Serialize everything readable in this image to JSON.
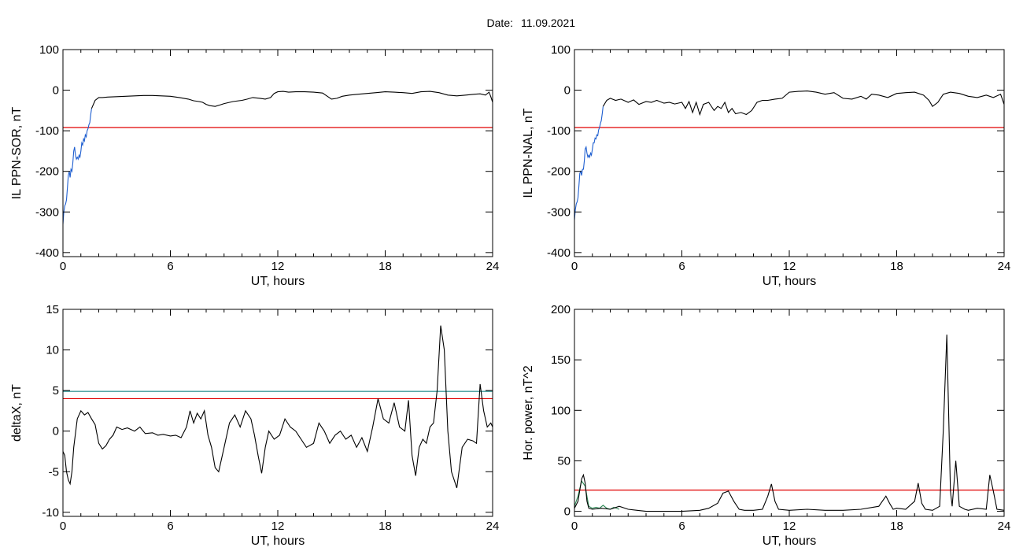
{
  "header": {
    "date_label": "Date:",
    "date_value": "11.09.2021"
  },
  "colors": {
    "line": "#000000",
    "threshold_red": "#e00000",
    "threshold_teal": "#1f8a8a",
    "highlight_blue": "#1f5fd0",
    "highlight_green": "#2e8b57"
  },
  "chart_data": [
    {
      "id": "il-sor",
      "type": "line",
      "title": "",
      "xlabel": "UT, hours",
      "ylabel": "IL PPN-SOR, nT",
      "xlim": [
        0,
        24
      ],
      "ylim": [
        -410,
        100
      ],
      "xticks": [
        0,
        6,
        12,
        18,
        24
      ],
      "xtick_labels": [
        "0",
        "6",
        "12",
        "18",
        "24"
      ],
      "yticks": [
        -400,
        -300,
        -200,
        -100,
        0,
        100
      ],
      "ytick_labels": [
        "-400",
        "-300",
        "-200",
        "-100",
        "0",
        "100"
      ],
      "grid": false,
      "thresholds": [
        {
          "value": -92,
          "color": "#e00000"
        }
      ],
      "series": [
        {
          "color": "#1f5fd0",
          "x": [
            0,
            0.05,
            0.1,
            0.15,
            0.2,
            0.25,
            0.3,
            0.35,
            0.4,
            0.45,
            0.5,
            0.55,
            0.6,
            0.65,
            0.7,
            0.75,
            0.8,
            0.85,
            0.9,
            0.95,
            1.0,
            1.05,
            1.1,
            1.15,
            1.2,
            1.25,
            1.3,
            1.35,
            1.4,
            1.45,
            1.5,
            1.55,
            1.6
          ],
          "y": [
            -330,
            -300,
            -285,
            -280,
            -270,
            -240,
            -210,
            -200,
            -215,
            -195,
            -200,
            -180,
            -150,
            -140,
            -160,
            -170,
            -165,
            -170,
            -160,
            -165,
            -150,
            -130,
            -135,
            -120,
            -125,
            -110,
            -115,
            -100,
            -95,
            -85,
            -80,
            -60,
            -45
          ]
        },
        {
          "color": "#000000",
          "x": [
            1.6,
            1.8,
            2.0,
            2.2,
            2.5,
            3.0,
            3.5,
            4.0,
            4.5,
            5.0,
            5.5,
            6.0,
            6.5,
            7.0,
            7.3,
            7.6,
            7.8,
            8.0,
            8.2,
            8.5,
            8.8,
            9.0,
            9.5,
            10.0,
            10.3,
            10.6,
            11.0,
            11.3,
            11.6,
            11.8,
            12.0,
            12.3,
            12.6,
            13.0,
            13.5,
            14.0,
            14.5,
            14.8,
            15.0,
            15.3,
            15.6,
            16.0,
            16.5,
            17.0,
            17.5,
            18.0,
            18.5,
            19.0,
            19.5,
            20.0,
            20.5,
            21.0,
            21.5,
            22.0,
            22.5,
            23.0,
            23.3,
            23.6,
            23.8,
            23.9,
            24.0
          ],
          "y": [
            -45,
            -25,
            -18,
            -18,
            -17,
            -16,
            -15,
            -14,
            -13,
            -13,
            -14,
            -15,
            -18,
            -22,
            -26,
            -28,
            -30,
            -35,
            -38,
            -40,
            -36,
            -33,
            -28,
            -25,
            -22,
            -18,
            -20,
            -22,
            -18,
            -8,
            -4,
            -3,
            -5,
            -4,
            -4,
            -5,
            -7,
            -16,
            -22,
            -20,
            -15,
            -12,
            -10,
            -8,
            -6,
            -4,
            -5,
            -6,
            -8,
            -4,
            -3,
            -6,
            -12,
            -14,
            -12,
            -10,
            -9,
            -12,
            -5,
            -16,
            -30
          ]
        }
      ]
    },
    {
      "id": "il-nal",
      "type": "line",
      "title": "",
      "xlabel": "UT, hours",
      "ylabel": "IL PPN-NAL, nT",
      "xlim": [
        0,
        24
      ],
      "ylim": [
        -410,
        100
      ],
      "xticks": [
        0,
        6,
        12,
        18,
        24
      ],
      "xtick_labels": [
        "0",
        "6",
        "12",
        "18",
        "24"
      ],
      "yticks": [
        -400,
        -300,
        -200,
        -100,
        0,
        100
      ],
      "ytick_labels": [
        "-400",
        "-300",
        "-200",
        "-100",
        "0",
        "100"
      ],
      "grid": false,
      "thresholds": [
        {
          "value": -92,
          "color": "#e00000"
        }
      ],
      "series": [
        {
          "color": "#1f5fd0",
          "x": [
            0,
            0.05,
            0.1,
            0.15,
            0.2,
            0.25,
            0.3,
            0.35,
            0.4,
            0.45,
            0.5,
            0.55,
            0.6,
            0.65,
            0.7,
            0.75,
            0.8,
            0.85,
            0.9,
            0.95,
            1.0,
            1.05,
            1.1,
            1.15,
            1.2,
            1.25,
            1.3,
            1.35,
            1.4,
            1.45,
            1.5,
            1.55,
            1.6
          ],
          "y": [
            -320,
            -295,
            -280,
            -275,
            -265,
            -235,
            -205,
            -200,
            -210,
            -195,
            -195,
            -175,
            -145,
            -140,
            -155,
            -165,
            -160,
            -165,
            -155,
            -160,
            -145,
            -130,
            -130,
            -118,
            -120,
            -110,
            -112,
            -98,
            -92,
            -82,
            -75,
            -58,
            -40
          ]
        },
        {
          "color": "#000000",
          "x": [
            1.6,
            1.8,
            2.0,
            2.3,
            2.6,
            3.0,
            3.3,
            3.6,
            4.0,
            4.3,
            4.6,
            5.0,
            5.3,
            5.6,
            6.0,
            6.2,
            6.4,
            6.6,
            6.8,
            7.0,
            7.2,
            7.5,
            7.8,
            8.0,
            8.2,
            8.4,
            8.6,
            8.8,
            9.0,
            9.3,
            9.6,
            9.9,
            10.2,
            10.5,
            10.8,
            11.2,
            11.6,
            12.0,
            12.5,
            13.0,
            13.5,
            14.0,
            14.5,
            15.0,
            15.5,
            16.0,
            16.3,
            16.6,
            17.0,
            17.5,
            18.0,
            18.5,
            19.0,
            19.5,
            19.8,
            20.0,
            20.3,
            20.6,
            21.0,
            21.5,
            22.0,
            22.5,
            23.0,
            23.4,
            23.8,
            23.9,
            24.0
          ],
          "y": [
            -40,
            -25,
            -20,
            -25,
            -22,
            -30,
            -24,
            -35,
            -28,
            -30,
            -25,
            -32,
            -30,
            -34,
            -30,
            -45,
            -28,
            -55,
            -30,
            -60,
            -35,
            -30,
            -50,
            -40,
            -45,
            -30,
            -55,
            -45,
            -58,
            -55,
            -60,
            -50,
            -30,
            -25,
            -25,
            -22,
            -20,
            -5,
            -3,
            -2,
            -5,
            -10,
            -6,
            -20,
            -22,
            -15,
            -22,
            -10,
            -12,
            -18,
            -8,
            -6,
            -5,
            -12,
            -25,
            -40,
            -30,
            -10,
            -5,
            -8,
            -15,
            -18,
            -12,
            -18,
            -10,
            -22,
            -35
          ]
        }
      ]
    },
    {
      "id": "deltax",
      "type": "line",
      "title": "",
      "xlabel": "UT, hours",
      "ylabel": "deltaX, nT",
      "xlim": [
        0,
        24
      ],
      "ylim": [
        -10.5,
        15
      ],
      "xticks": [
        0,
        6,
        12,
        18,
        24
      ],
      "xtick_labels": [
        "0",
        "6",
        "12",
        "18",
        "24"
      ],
      "yticks": [
        -10,
        -5,
        0,
        5,
        10,
        15
      ],
      "ytick_labels": [
        "-10",
        "-5",
        "0",
        "5",
        "10",
        "15"
      ],
      "grid": false,
      "thresholds": [
        {
          "value": 4.9,
          "color": "#1f8a8a"
        },
        {
          "value": 4.0,
          "color": "#e00000"
        }
      ],
      "series": [
        {
          "color": "#000000",
          "x": [
            0,
            0.1,
            0.2,
            0.3,
            0.4,
            0.5,
            0.6,
            0.8,
            1.0,
            1.2,
            1.4,
            1.6,
            1.8,
            2.0,
            2.2,
            2.4,
            2.6,
            2.8,
            3.0,
            3.3,
            3.6,
            4.0,
            4.3,
            4.6,
            5.0,
            5.3,
            5.6,
            6.0,
            6.3,
            6.6,
            6.9,
            7.1,
            7.3,
            7.5,
            7.7,
            7.9,
            8.1,
            8.3,
            8.5,
            8.7,
            9.0,
            9.3,
            9.6,
            9.9,
            10.2,
            10.5,
            10.7,
            10.9,
            11.1,
            11.3,
            11.5,
            11.8,
            12.1,
            12.4,
            12.7,
            13.0,
            13.3,
            13.6,
            14.0,
            14.3,
            14.6,
            14.9,
            15.2,
            15.5,
            15.8,
            16.1,
            16.4,
            16.7,
            17.0,
            17.3,
            17.6,
            17.9,
            18.2,
            18.5,
            18.8,
            19.1,
            19.3,
            19.5,
            19.7,
            19.9,
            20.1,
            20.3,
            20.5,
            20.7,
            20.9,
            21.1,
            21.3,
            21.5,
            21.7,
            22.0,
            22.3,
            22.6,
            22.9,
            23.1,
            23.3,
            23.5,
            23.7,
            23.9,
            24.0
          ],
          "y": [
            -2.5,
            -3.0,
            -5.0,
            -6.0,
            -6.5,
            -5.0,
            -2.0,
            1.5,
            2.5,
            2.0,
            2.3,
            1.5,
            0.8,
            -1.5,
            -2.2,
            -1.8,
            -1.0,
            -0.5,
            0.5,
            0.2,
            0.4,
            0.0,
            0.5,
            -0.3,
            -0.2,
            -0.5,
            -0.4,
            -0.6,
            -0.5,
            -0.8,
            0.5,
            2.5,
            1.0,
            2.2,
            1.5,
            2.5,
            -0.5,
            -2.0,
            -4.5,
            -5.0,
            -2.0,
            1.0,
            2.0,
            0.5,
            2.5,
            1.5,
            -0.5,
            -3.0,
            -5.2,
            -2.0,
            0.0,
            -1.0,
            -0.5,
            1.5,
            0.5,
            0.0,
            -1.0,
            -2.0,
            -1.5,
            1.0,
            0.0,
            -1.5,
            -0.5,
            0.0,
            -1.0,
            -0.5,
            -2.0,
            -0.8,
            -2.5,
            0.5,
            4.0,
            1.5,
            1.0,
            3.5,
            0.5,
            0.0,
            3.8,
            -3.0,
            -5.5,
            -2.0,
            -1.0,
            -1.5,
            0.5,
            1.0,
            5.0,
            13.0,
            10.0,
            0.0,
            -5.0,
            -7.0,
            -2.0,
            -1.0,
            -1.2,
            -1.5,
            5.8,
            2.5,
            0.5,
            1.0,
            0.5
          ]
        }
      ]
    },
    {
      "id": "hor-power",
      "type": "line",
      "title": "",
      "xlabel": "UT, hours",
      "ylabel": "Hor. power, nT^2",
      "xlim": [
        0,
        24
      ],
      "ylim": [
        -5,
        200
      ],
      "xticks": [
        0,
        6,
        12,
        18,
        24
      ],
      "xtick_labels": [
        "0",
        "6",
        "12",
        "18",
        "24"
      ],
      "yticks": [
        0,
        50,
        100,
        150,
        200
      ],
      "ytick_labels": [
        "0",
        "50",
        "100",
        "150",
        "200"
      ],
      "grid": false,
      "thresholds": [
        {
          "value": 21,
          "color": "#e00000"
        }
      ],
      "series": [
        {
          "color": "#2e8b57",
          "x": [
            0,
            0.2,
            0.4,
            0.6,
            0.8,
            1.0,
            1.2,
            1.4,
            1.6,
            1.8,
            2.0,
            2.2,
            2.5
          ],
          "y": [
            5,
            15,
            30,
            25,
            5,
            3,
            4,
            3,
            6,
            3,
            2,
            4,
            2
          ]
        },
        {
          "color": "#000000",
          "x": [
            0,
            0.2,
            0.4,
            0.5,
            0.6,
            0.7,
            0.8,
            1.0,
            1.5,
            2.0,
            2.5,
            3.0,
            3.5,
            4.0,
            5.0,
            6.0,
            7.0,
            7.5,
            8.0,
            8.3,
            8.6,
            8.9,
            9.2,
            9.5,
            10.0,
            10.5,
            10.8,
            11.0,
            11.2,
            11.4,
            12.0,
            13.0,
            14.0,
            15.0,
            16.0,
            17.0,
            17.4,
            17.6,
            17.8,
            18.0,
            18.5,
            19.0,
            19.2,
            19.4,
            19.6,
            20.0,
            20.4,
            20.6,
            20.8,
            21.0,
            21.1,
            21.3,
            21.5,
            21.8,
            22.0,
            22.5,
            23.0,
            23.2,
            23.4,
            23.6,
            24.0
          ],
          "y": [
            3,
            10,
            32,
            36,
            28,
            10,
            3,
            2,
            3,
            2,
            5,
            2,
            1,
            0,
            0,
            0,
            1,
            3,
            8,
            18,
            20,
            10,
            2,
            1,
            1,
            2,
            15,
            27,
            10,
            2,
            1,
            2,
            1,
            1,
            2,
            5,
            15,
            8,
            2,
            3,
            2,
            10,
            28,
            8,
            2,
            1,
            5,
            80,
            175,
            20,
            5,
            50,
            5,
            2,
            1,
            3,
            2,
            36,
            20,
            2,
            1
          ]
        }
      ]
    }
  ]
}
